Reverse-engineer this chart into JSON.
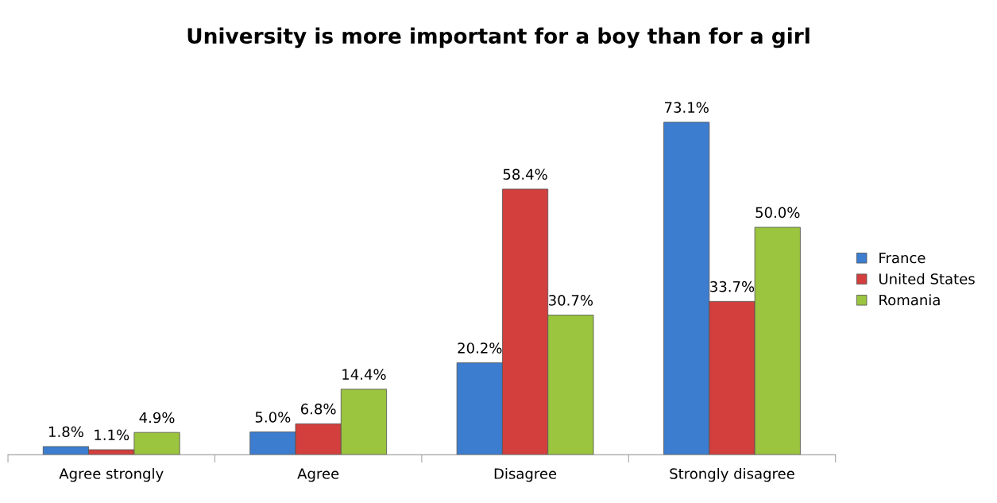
{
  "chart_data": {
    "type": "bar",
    "title": "University is more important for a boy than for a girl",
    "categories": [
      "Agree strongly",
      "Agree",
      "Disagree",
      "Strongly disagree"
    ],
    "series": [
      {
        "name": "France",
        "color": "#3c7dd0",
        "values": [
          1.8,
          5.0,
          20.2,
          73.1
        ],
        "value_labels": [
          "1.8%",
          "5.0%",
          "20.2%",
          "73.1%"
        ]
      },
      {
        "name": "United States",
        "color": "#d23f3d",
        "values": [
          1.1,
          6.8,
          58.4,
          33.7
        ],
        "value_labels": [
          "1.1%",
          "6.8%",
          "58.4%",
          "33.7%"
        ]
      },
      {
        "name": "Romania",
        "color": "#9bc43f",
        "values": [
          4.9,
          14.4,
          30.7,
          50.0
        ],
        "value_labels": [
          "4.9%",
          "14.4%",
          "30.7%",
          "50.0%"
        ]
      }
    ],
    "legend": "right",
    "tick_labels": "x",
    "grid": false
  }
}
